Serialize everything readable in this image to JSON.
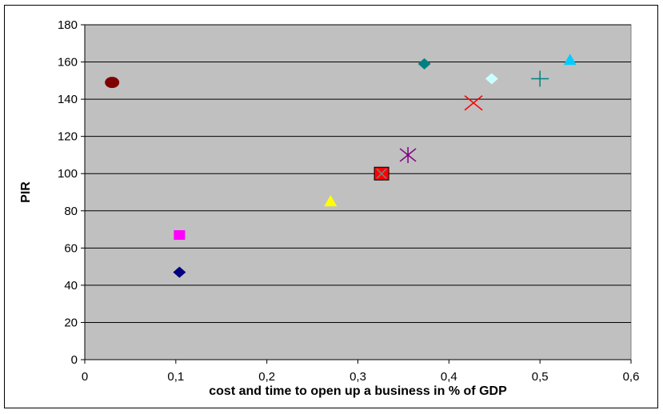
{
  "chart_data": {
    "type": "scatter",
    "xlabel": "cost and time to open up a business in % of GDP",
    "ylabel": "PIR",
    "xlim": [
      0,
      0.6
    ],
    "ylim": [
      0,
      180
    ],
    "x_ticks": [
      0,
      0.1,
      0.2,
      0.3,
      0.4,
      0.5,
      0.6
    ],
    "x_tick_labels": [
      "0",
      "0,1",
      "0,2",
      "0,3",
      "0,4",
      "0,5",
      "0,6"
    ],
    "y_ticks": [
      0,
      20,
      40,
      60,
      80,
      100,
      120,
      140,
      160,
      180
    ],
    "y_tick_labels": [
      "0",
      "20",
      "40",
      "60",
      "80",
      "100",
      "120",
      "140",
      "160",
      "180"
    ],
    "grid": "horizontal",
    "plot_background": "#c0c0c0",
    "points": [
      {
        "x": 0.03,
        "y": 149,
        "marker": "circle",
        "color": "#800000"
      },
      {
        "x": 0.104,
        "y": 67,
        "marker": "square",
        "color": "#ff00ff"
      },
      {
        "x": 0.104,
        "y": 47,
        "marker": "diamond",
        "color": "#000080"
      },
      {
        "x": 0.27,
        "y": 85,
        "marker": "triangle",
        "color": "#ffff00"
      },
      {
        "x": 0.326,
        "y": 100,
        "marker": "square-x",
        "color": "#ff0000"
      },
      {
        "x": 0.355,
        "y": 110,
        "marker": "star",
        "color": "#800080"
      },
      {
        "x": 0.373,
        "y": 159,
        "marker": "diamond",
        "color": "#008080"
      },
      {
        "x": 0.427,
        "y": 138,
        "marker": "x",
        "color": "#ff0000"
      },
      {
        "x": 0.447,
        "y": 151,
        "marker": "diamond",
        "color": "#ccffff"
      },
      {
        "x": 0.5,
        "y": 151,
        "marker": "plus",
        "color": "#008080"
      },
      {
        "x": 0.533,
        "y": 161,
        "marker": "triangle",
        "color": "#00ccff"
      }
    ]
  }
}
